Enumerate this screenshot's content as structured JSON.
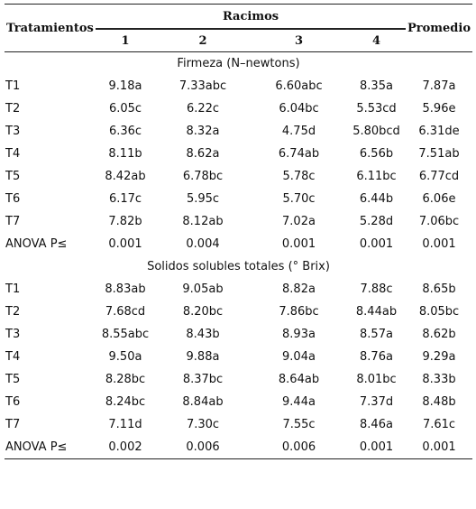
{
  "header": {
    "tratamientos": "Tratamientos",
    "racimos": "Racimos",
    "promedio": "Promedio",
    "cols": [
      "1",
      "2",
      "3",
      "4"
    ]
  },
  "sections": [
    {
      "title": "Firmeza (N–newtons)",
      "rows": [
        {
          "label": "T1",
          "values": [
            "9.18a",
            "7.33abc",
            "6.60abc",
            "8.35a",
            "7.87a"
          ]
        },
        {
          "label": "T2",
          "values": [
            "6.05c",
            "6.22c",
            "6.04bc",
            "5.53cd",
            "5.96e"
          ]
        },
        {
          "label": "T3",
          "values": [
            "6.36c",
            "8.32a",
            "4.75d",
            "5.80bcd",
            "6.31de"
          ]
        },
        {
          "label": "T4",
          "values": [
            "8.11b",
            "8.62a",
            "6.74ab",
            "6.56b",
            "7.51ab"
          ]
        },
        {
          "label": "T5",
          "values": [
            "8.42ab",
            "6.78bc",
            "5.78c",
            "6.11bc",
            "6.77cd"
          ]
        },
        {
          "label": "T6",
          "values": [
            "6.17c",
            "5.95c",
            "5.70c",
            "6.44b",
            "6.06e"
          ]
        },
        {
          "label": "T7",
          "values": [
            "7.82b",
            "8.12ab",
            "7.02a",
            "5.28d",
            "7.06bc"
          ]
        },
        {
          "label": "ANOVA P≤",
          "values": [
            "0.001",
            "0.004",
            "0.001",
            "0.001",
            "0.001"
          ]
        }
      ]
    },
    {
      "title": "Solidos solubles totales (° Brix)",
      "rows": [
        {
          "label": "T1",
          "values": [
            "8.83ab",
            "9.05ab",
            "8.82a",
            "7.88c",
            "8.65b"
          ]
        },
        {
          "label": "T2",
          "values": [
            "7.68cd",
            "8.20bc",
            "7.86bc",
            "8.44ab",
            "8.05bc"
          ]
        },
        {
          "label": "T3",
          "values": [
            "8.55abc",
            "8.43b",
            "8.93a",
            "8.57a",
            "8.62b"
          ]
        },
        {
          "label": "T4",
          "values": [
            "9.50a",
            "9.88a",
            "9.04a",
            "8.76a",
            "9.29a"
          ]
        },
        {
          "label": "T5",
          "values": [
            "8.28bc",
            "8.37bc",
            "8.64ab",
            "8.01bc",
            "8.33b"
          ]
        },
        {
          "label": "T6",
          "values": [
            "8.24bc",
            "8.84ab",
            "9.44a",
            "7.37d",
            "8.48b"
          ]
        },
        {
          "label": "T7",
          "values": [
            "7.11d",
            "7.30c",
            "7.55c",
            "8.46a",
            "7.61c"
          ]
        },
        {
          "label": "ANOVA P≤",
          "values": [
            "0.002",
            "0.006",
            "0.006",
            "0.001",
            "0.001"
          ]
        }
      ]
    }
  ]
}
